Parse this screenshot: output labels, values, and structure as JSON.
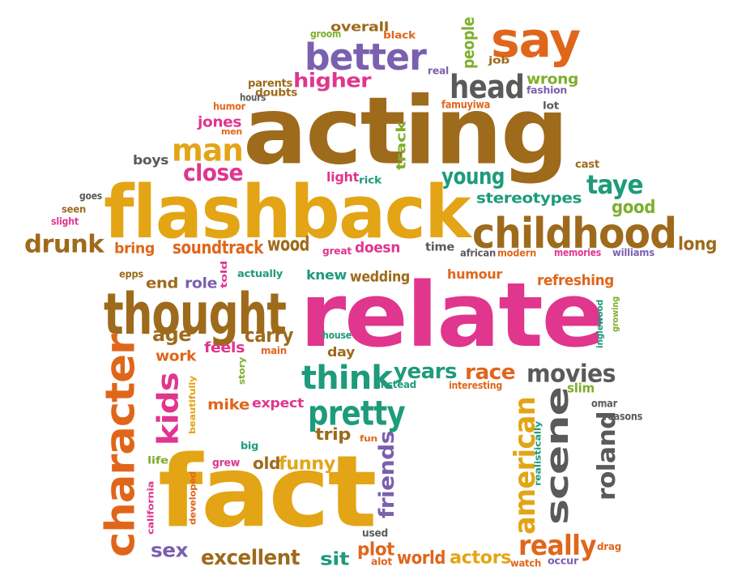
{
  "palette": {
    "mustard": "#E3A515",
    "brown": "#9E6A1B",
    "orange": "#E0661B",
    "magenta": "#E0368D",
    "teal": "#1E9B7A",
    "purple": "#7A60AE",
    "green": "#7FAE2E",
    "gray": "#5A5A5A",
    "lightgray": "#7D7D7D"
  },
  "words": [
    "acting",
    "flashback",
    "relate",
    "fact",
    "thought",
    "childhood",
    "character",
    "say",
    "better",
    "head",
    "scene",
    "american",
    "think",
    "pretty",
    "man",
    "close",
    "taye",
    "young",
    "kids",
    "roland",
    "really",
    "excellent",
    "years",
    "race",
    "movies",
    "age",
    "carry",
    "drunk",
    "soundtrack",
    "wood",
    "friends",
    "actors",
    "world",
    "sit",
    "sex",
    "plot",
    "funny",
    "old",
    "trip",
    "mike",
    "expect",
    "work",
    "feels",
    "higher",
    "people",
    "wrong",
    "track",
    "good",
    "stereotypes",
    "long",
    "end",
    "role",
    "knew",
    "wedding",
    "humour",
    "refreshing",
    "day",
    "jones",
    "boys",
    "bring",
    "doesn",
    "overall",
    "groom",
    "black",
    "real",
    "job",
    "fashion",
    "parents",
    "doubts",
    "hours",
    "humor",
    "famuyiwa",
    "lot",
    "light",
    "rick",
    "cast",
    "goes",
    "seen",
    "slight",
    "great",
    "time",
    "african",
    "modern",
    "memories",
    "williams",
    "epps",
    "actually",
    "told",
    "house",
    "main",
    "instead",
    "interesting",
    "inglewood",
    "growing",
    "slim",
    "omar",
    "reasons",
    "beautifully",
    "story",
    "big",
    "grew",
    "life",
    "california",
    "developed",
    "fun",
    "used",
    "realistically",
    "alot",
    "watch",
    "occur",
    "drag",
    "men"
  ]
}
